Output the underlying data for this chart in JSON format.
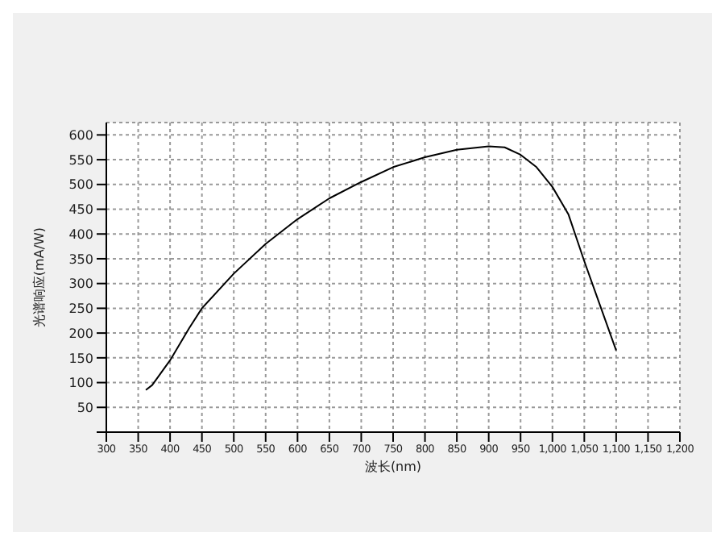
{
  "chart_data": {
    "type": "line",
    "xlabel": "波长(nm)",
    "ylabel": "光谱响应(mA/W)",
    "x": [
      362,
      372,
      400,
      430,
      450,
      500,
      550,
      600,
      650,
      700,
      750,
      800,
      850,
      900,
      925,
      950,
      975,
      1000,
      1025,
      1050,
      1075,
      1100
    ],
    "series": [
      {
        "color": "#000000",
        "values": [
          85,
          95,
          145,
          210,
          250,
          320,
          380,
          430,
          472,
          505,
          535,
          555,
          570,
          577,
          575,
          560,
          535,
          495,
          440,
          345,
          255,
          165
        ]
      }
    ],
    "xlim": [
      300,
      1200
    ],
    "xticks": [
      300,
      350,
      400,
      450,
      500,
      550,
      600,
      650,
      700,
      750,
      800,
      850,
      900,
      950,
      {
        "value": 1000,
        "label": "1,000"
      },
      {
        "value": 1050,
        "label": "1,050"
      },
      {
        "value": 1100,
        "label": "1,100"
      },
      {
        "value": 1150,
        "label": "1,150"
      },
      {
        "value": 1200,
        "label": "1,200"
      }
    ],
    "ylim": [
      0,
      625
    ],
    "yticks": [
      {
        "value": 0,
        "label": null
      },
      50,
      100,
      150,
      200,
      250,
      300,
      350,
      400,
      450,
      500,
      550,
      600
    ],
    "grid": true,
    "marker": "none",
    "line_style": "solid",
    "legend": false
  }
}
